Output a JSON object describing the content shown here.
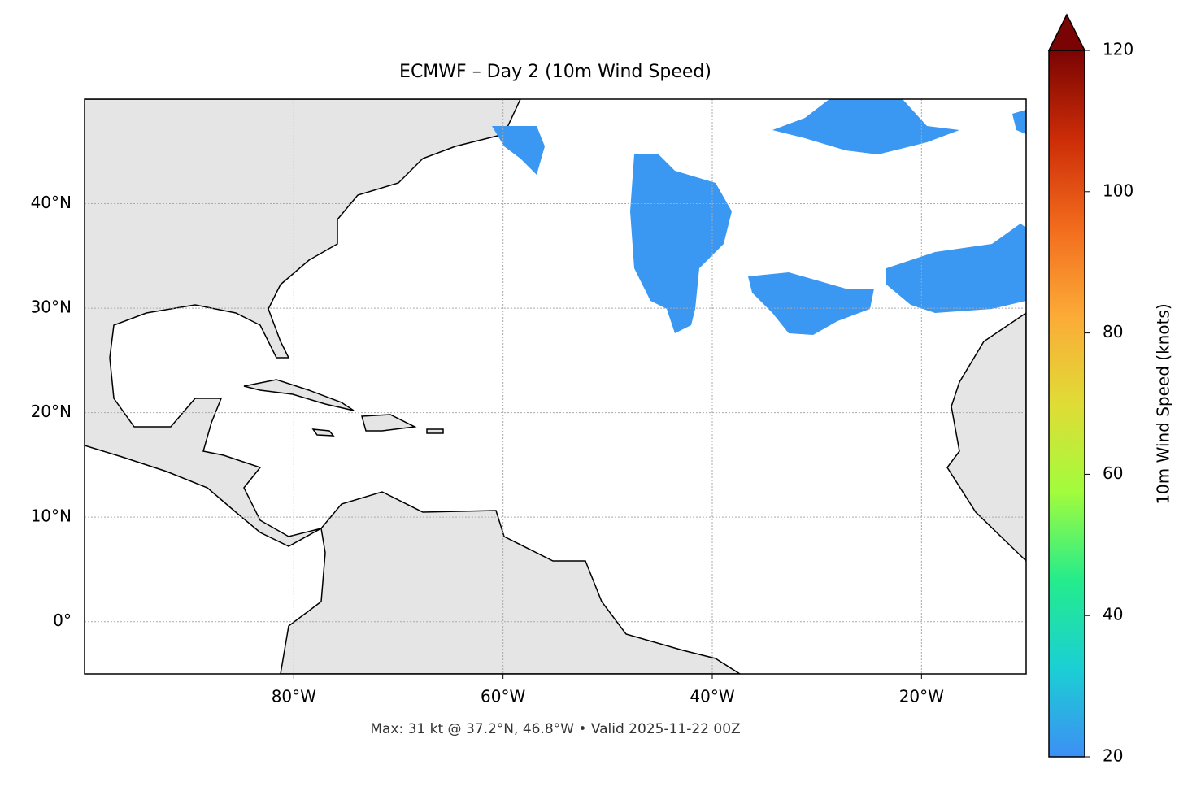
{
  "chart_data": {
    "type": "map",
    "title": "ECMWF – Day 2 (10m Wind Speed)",
    "footnote": "Max: 31 kt @ 37.2°N, 46.8°W • Valid 2025-11-22 00Z",
    "xlim": [
      -100,
      -10
    ],
    "ylim": [
      -5,
      50
    ],
    "xticks": [
      {
        "value": -80,
        "label": "80°W"
      },
      {
        "value": -60,
        "label": "60°W"
      },
      {
        "value": -40,
        "label": "40°W"
      },
      {
        "value": -20,
        "label": "20°W"
      }
    ],
    "yticks": [
      {
        "value": 0,
        "label": "0°"
      },
      {
        "value": 10,
        "label": "10°N"
      },
      {
        "value": 20,
        "label": "20°N"
      },
      {
        "value": 30,
        "label": "30°N"
      },
      {
        "value": 40,
        "label": "40°N"
      }
    ],
    "grid": true,
    "colorbar": {
      "label": "10m Wind Speed (knots)",
      "lim": [
        20,
        120
      ],
      "ticks": [
        20,
        40,
        60,
        80,
        100,
        120
      ],
      "colors": [
        "#3d8ff5",
        "#1bcfd4",
        "#24ec8c",
        "#a2fc3c",
        "#e0dc36",
        "#fcaa37",
        "#f26b1d",
        "#cc2c07",
        "#7a0403"
      ]
    }
  }
}
